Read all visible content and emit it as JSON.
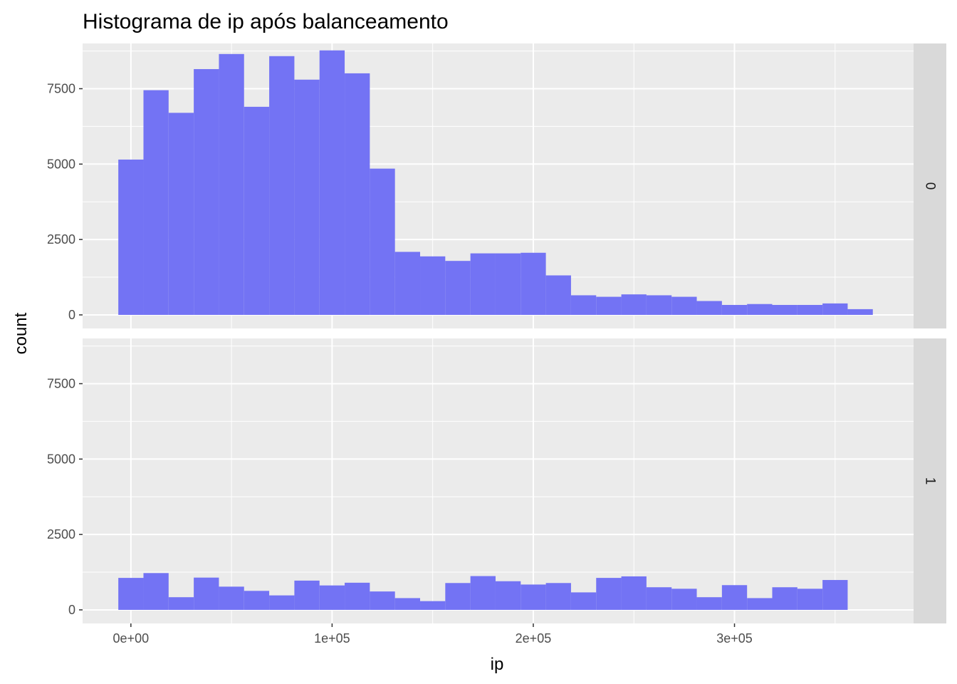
{
  "chart_data": {
    "type": "bar",
    "title": "Histograma de ip após balanceamento",
    "xlabel": "ip",
    "ylabel": "count",
    "xlim": [
      -24000,
      389000
    ],
    "ylim": [
      -450,
      9000
    ],
    "x_ticks": [
      {
        "value": 0,
        "label": "0e+00"
      },
      {
        "value": 100000,
        "label": "1e+05"
      },
      {
        "value": 200000,
        "label": "2e+05"
      },
      {
        "value": 300000,
        "label": "3e+05"
      }
    ],
    "y_ticks": [
      {
        "value": 0,
        "label": "0"
      },
      {
        "value": 2500,
        "label": "2500"
      },
      {
        "value": 5000,
        "label": "5000"
      },
      {
        "value": 7500,
        "label": "7500"
      }
    ],
    "grid": true,
    "bin_width": 12500,
    "bar_color": "#7373F4",
    "panel_background": "#EBEBEB",
    "strip_background": "#D9D9D9",
    "facets": [
      {
        "label": "0",
        "bins": [
          {
            "x_start": -6250,
            "count": 5150
          },
          {
            "x_start": 6250,
            "count": 7450
          },
          {
            "x_start": 18750,
            "count": 6700
          },
          {
            "x_start": 31250,
            "count": 8150
          },
          {
            "x_start": 43750,
            "count": 8650
          },
          {
            "x_start": 56250,
            "count": 6900
          },
          {
            "x_start": 68750,
            "count": 8580
          },
          {
            "x_start": 81250,
            "count": 7800
          },
          {
            "x_start": 93750,
            "count": 8770
          },
          {
            "x_start": 106250,
            "count": 8010
          },
          {
            "x_start": 118750,
            "count": 4850
          },
          {
            "x_start": 131250,
            "count": 2090
          },
          {
            "x_start": 143750,
            "count": 1940
          },
          {
            "x_start": 156250,
            "count": 1790
          },
          {
            "x_start": 168750,
            "count": 2040
          },
          {
            "x_start": 181250,
            "count": 2040
          },
          {
            "x_start": 193750,
            "count": 2060
          },
          {
            "x_start": 206250,
            "count": 1310
          },
          {
            "x_start": 218750,
            "count": 650
          },
          {
            "x_start": 231250,
            "count": 600
          },
          {
            "x_start": 243750,
            "count": 680
          },
          {
            "x_start": 256250,
            "count": 650
          },
          {
            "x_start": 268750,
            "count": 600
          },
          {
            "x_start": 281250,
            "count": 460
          },
          {
            "x_start": 293750,
            "count": 330
          },
          {
            "x_start": 306250,
            "count": 360
          },
          {
            "x_start": 318750,
            "count": 330
          },
          {
            "x_start": 331250,
            "count": 330
          },
          {
            "x_start": 343750,
            "count": 380
          },
          {
            "x_start": 356250,
            "count": 190
          }
        ]
      },
      {
        "label": "1",
        "bins": [
          {
            "x_start": -6250,
            "count": 1060
          },
          {
            "x_start": 6250,
            "count": 1220
          },
          {
            "x_start": 18750,
            "count": 420
          },
          {
            "x_start": 31250,
            "count": 1070
          },
          {
            "x_start": 43750,
            "count": 770
          },
          {
            "x_start": 56250,
            "count": 630
          },
          {
            "x_start": 68750,
            "count": 480
          },
          {
            "x_start": 81250,
            "count": 970
          },
          {
            "x_start": 93750,
            "count": 810
          },
          {
            "x_start": 106250,
            "count": 900
          },
          {
            "x_start": 118750,
            "count": 610
          },
          {
            "x_start": 131250,
            "count": 390
          },
          {
            "x_start": 143750,
            "count": 290
          },
          {
            "x_start": 156250,
            "count": 890
          },
          {
            "x_start": 168750,
            "count": 1120
          },
          {
            "x_start": 181250,
            "count": 950
          },
          {
            "x_start": 193750,
            "count": 840
          },
          {
            "x_start": 206250,
            "count": 890
          },
          {
            "x_start": 218750,
            "count": 580
          },
          {
            "x_start": 231250,
            "count": 1060
          },
          {
            "x_start": 243750,
            "count": 1110
          },
          {
            "x_start": 256250,
            "count": 750
          },
          {
            "x_start": 268750,
            "count": 700
          },
          {
            "x_start": 281250,
            "count": 420
          },
          {
            "x_start": 293750,
            "count": 820
          },
          {
            "x_start": 306250,
            "count": 390
          },
          {
            "x_start": 318750,
            "count": 750
          },
          {
            "x_start": 331250,
            "count": 700
          },
          {
            "x_start": 343750,
            "count": 990
          }
        ]
      }
    ]
  }
}
